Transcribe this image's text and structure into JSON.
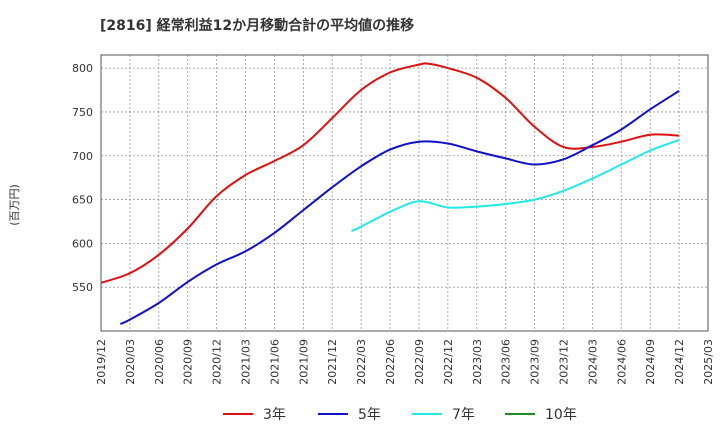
{
  "chart_data": {
    "type": "line",
    "title": "[2816]  経常利益12か月移動合計の平均値の推移",
    "ylabel": "(百万円)",
    "xlabel": "",
    "x_ticks": [
      "2019/12",
      "2020/03",
      "2020/06",
      "2020/09",
      "2020/12",
      "2021/03",
      "2021/06",
      "2021/09",
      "2021/12",
      "2022/03",
      "2022/06",
      "2022/09",
      "2022/12",
      "2023/03",
      "2023/06",
      "2023/09",
      "2023/12",
      "2024/03",
      "2024/06",
      "2024/09",
      "2024/12",
      "2025/03"
    ],
    "y_ticks": [
      550,
      600,
      650,
      700,
      750,
      800
    ],
    "ylim": [
      500,
      815
    ],
    "grid": true,
    "legend_position": "bottom",
    "series": [
      {
        "name": "3年",
        "color": "#dd1111",
        "x": [
          "2019/12",
          "2020/03",
          "2020/06",
          "2020/09",
          "2020/12",
          "2021/03",
          "2021/06",
          "2021/09",
          "2021/12",
          "2022/03",
          "2022/06",
          "2022/09",
          "2022/10",
          "2022/12",
          "2023/03",
          "2023/06",
          "2023/09",
          "2023/12",
          "2024/03",
          "2024/06",
          "2024/09",
          "2024/12"
        ],
        "values": [
          555,
          566,
          587,
          617,
          654,
          678,
          694,
          712,
          743,
          775,
          795,
          804,
          805,
          800,
          789,
          766,
          733,
          710,
          710,
          716,
          724,
          723
        ]
      },
      {
        "name": "5年",
        "color": "#1111cc",
        "x": [
          "2020/02",
          "2020/03",
          "2020/06",
          "2020/09",
          "2020/12",
          "2021/03",
          "2021/06",
          "2021/09",
          "2021/12",
          "2022/03",
          "2022/06",
          "2022/09",
          "2022/12",
          "2023/03",
          "2023/06",
          "2023/09",
          "2023/12",
          "2024/03",
          "2024/06",
          "2024/09",
          "2024/12"
        ],
        "values": [
          508,
          513,
          532,
          556,
          576,
          591,
          612,
          638,
          664,
          688,
          707,
          716,
          714,
          705,
          697,
          690,
          696,
          712,
          730,
          753,
          774
        ]
      },
      {
        "name": "7年",
        "color": "#22e8e8",
        "x": [
          "2022/02",
          "2022/03",
          "2022/06",
          "2022/09",
          "2022/12",
          "2023/03",
          "2023/06",
          "2023/09",
          "2023/12",
          "2024/03",
          "2024/06",
          "2024/09",
          "2024/12"
        ],
        "values": [
          614,
          619,
          636,
          648,
          641,
          642,
          645,
          650,
          660,
          674,
          690,
          706,
          718
        ]
      },
      {
        "name": "10年",
        "color": "#228822",
        "x": [],
        "values": []
      }
    ]
  }
}
